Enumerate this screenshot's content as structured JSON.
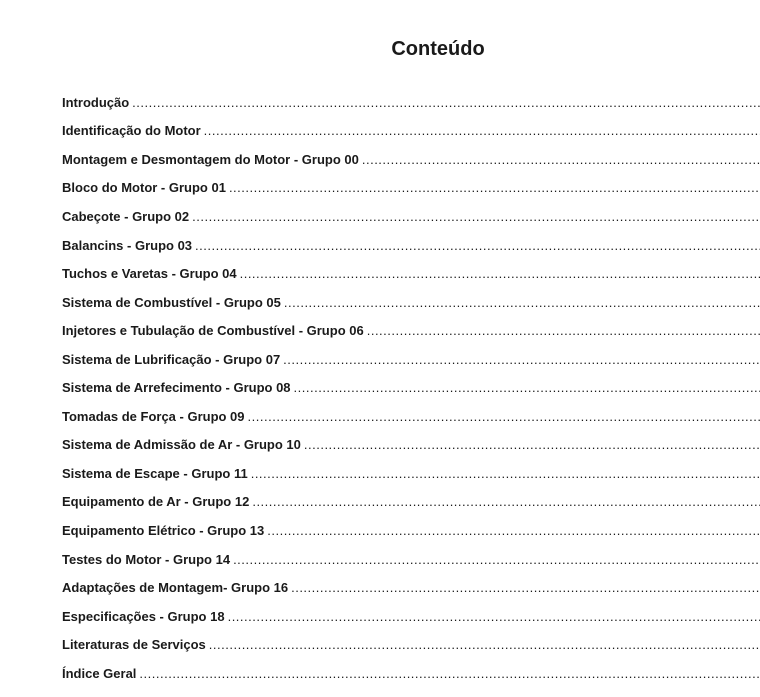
{
  "title": "Conteúdo",
  "entries": [
    "Introdução",
    "Identificação do Motor",
    "Montagem e Desmontagem do Motor - Grupo 00",
    "Bloco do Motor - Grupo 01",
    "Cabeçote - Grupo 02",
    "Balancins - Grupo 03",
    "Tuchos e Varetas - Grupo 04",
    "Sistema de Combustível - Grupo 05",
    "Injetores e Tubulação de Combustível - Grupo 06",
    "Sistema de Lubrificação - Grupo 07",
    "Sistema de Arrefecimento - Grupo 08",
    "Tomadas de Força - Grupo 09",
    "Sistema de Admissão de Ar - Grupo 10",
    "Sistema de Escape - Grupo 11",
    "Equipamento de Ar - Grupo 12",
    "Equipamento Elétrico - Grupo 13",
    "Testes do Motor - Grupo 14",
    "Adaptações de Montagem- Grupo 16",
    "Especificações - Grupo 18",
    "Literaturas de Serviços",
    "Índice Geral"
  ]
}
